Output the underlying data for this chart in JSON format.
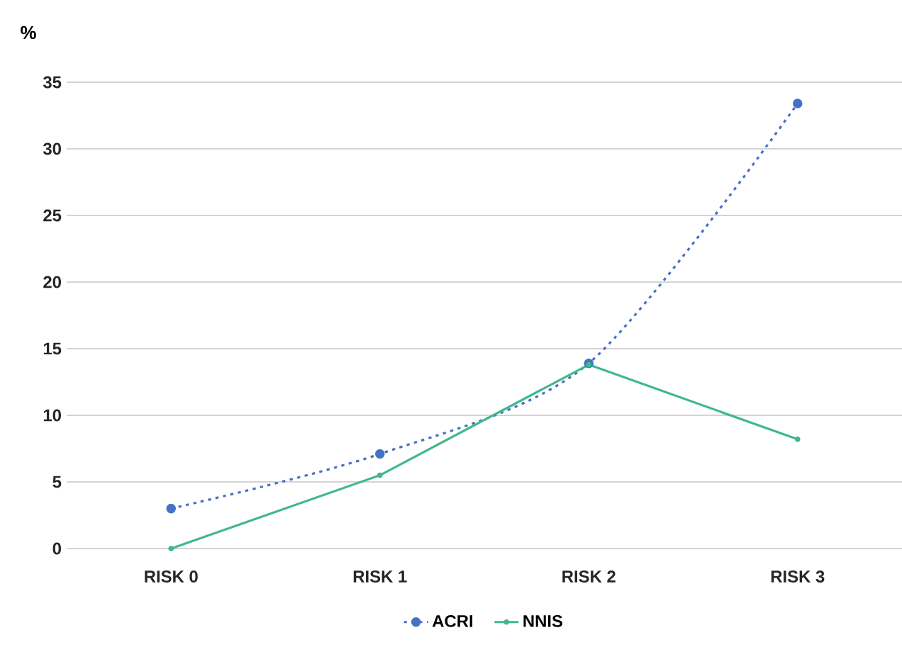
{
  "chart_data": {
    "type": "line",
    "ylabel": "%",
    "categories": [
      "RISK 0",
      "RISK 1",
      "RISK 2",
      "RISK 3"
    ],
    "series": [
      {
        "name": "ACRI",
        "color": "#4472c4",
        "line_style": "dotted",
        "values": [
          3.0,
          7.1,
          13.9,
          33.4
        ]
      },
      {
        "name": "NNIS",
        "color": "#3fb98a",
        "line_style": "solid",
        "values": [
          0,
          5.5,
          13.8,
          8.2
        ]
      }
    ],
    "ylim": [
      0,
      35
    ],
    "yticks": [
      0,
      5,
      10,
      15,
      20,
      25,
      30,
      35
    ],
    "grid": "y",
    "legend": "bottom",
    "marker": "circle"
  }
}
